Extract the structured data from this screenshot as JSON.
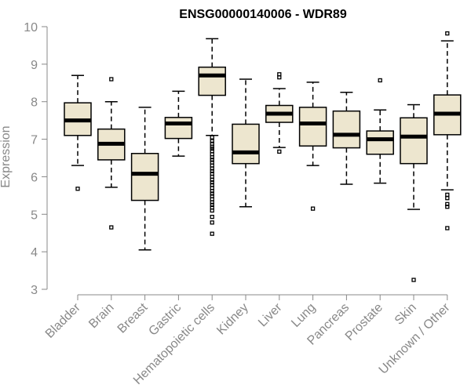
{
  "chart_data": {
    "type": "boxplot",
    "title": "ENSG00000140006 - WDR89",
    "xlabel": "",
    "ylabel": "Expression",
    "ylim": [
      3,
      10
    ],
    "yticks": [
      "3",
      "4",
      "5",
      "6",
      "7",
      "8",
      "9",
      "10"
    ],
    "box_color": "#ede6cf",
    "axis_color": "#888888",
    "categories": [
      "Bladder",
      "Brain",
      "Breast",
      "Gastric",
      "Hematopoietic cells",
      "Kidney",
      "Liver",
      "Lung",
      "Pancreas",
      "Prostate",
      "Skin",
      "Unknown / Other"
    ],
    "boxes": [
      {
        "category": "Bladder",
        "min": 6.3,
        "q1": 7.1,
        "median": 7.5,
        "q3": 7.97,
        "max": 8.7,
        "outliers": [
          5.68
        ]
      },
      {
        "category": "Brain",
        "min": 5.72,
        "q1": 6.45,
        "median": 6.88,
        "q3": 7.27,
        "max": 8.0,
        "outliers": [
          8.6,
          4.65
        ]
      },
      {
        "category": "Breast",
        "min": 4.05,
        "q1": 5.37,
        "median": 6.08,
        "q3": 6.62,
        "max": 7.85,
        "outliers": []
      },
      {
        "category": "Gastric",
        "min": 6.55,
        "q1": 7.02,
        "median": 7.42,
        "q3": 7.58,
        "max": 8.28,
        "outliers": []
      },
      {
        "category": "Hematopoietic cells",
        "min": 7.1,
        "q1": 8.17,
        "median": 8.7,
        "q3": 8.92,
        "max": 9.68,
        "outliers": [
          7.05,
          6.95,
          6.88,
          6.8,
          6.75,
          6.68,
          6.6,
          6.52,
          6.45,
          6.38,
          6.3,
          6.22,
          6.15,
          6.08,
          6.0,
          5.92,
          5.85,
          5.78,
          5.7,
          5.62,
          5.55,
          5.48,
          5.4,
          5.32,
          5.25,
          5.18,
          5.1,
          4.93,
          4.78,
          4.48
        ]
      },
      {
        "category": "Kidney",
        "min": 5.2,
        "q1": 6.35,
        "median": 6.65,
        "q3": 7.4,
        "max": 8.6,
        "outliers": []
      },
      {
        "category": "Liver",
        "min": 6.78,
        "q1": 7.45,
        "median": 7.68,
        "q3": 7.9,
        "max": 8.35,
        "outliers": [
          8.73,
          8.65,
          6.67
        ]
      },
      {
        "category": "Lung",
        "min": 6.3,
        "q1": 6.82,
        "median": 7.42,
        "q3": 7.85,
        "max": 8.52,
        "outliers": [
          5.15
        ]
      },
      {
        "category": "Pancreas",
        "min": 5.8,
        "q1": 6.77,
        "median": 7.12,
        "q3": 7.75,
        "max": 8.25,
        "outliers": []
      },
      {
        "category": "Prostate",
        "min": 5.83,
        "q1": 6.6,
        "median": 7.0,
        "q3": 7.22,
        "max": 7.78,
        "outliers": [
          8.57
        ]
      },
      {
        "category": "Skin",
        "min": 5.13,
        "q1": 6.35,
        "median": 7.07,
        "q3": 7.57,
        "max": 7.92,
        "outliers": [
          3.25
        ]
      },
      {
        "category": "Unknown / Other",
        "min": 5.65,
        "q1": 7.12,
        "median": 7.68,
        "q3": 8.18,
        "max": 9.62,
        "outliers": [
          9.82,
          5.52,
          5.43,
          5.27,
          5.2,
          4.63
        ]
      }
    ]
  }
}
